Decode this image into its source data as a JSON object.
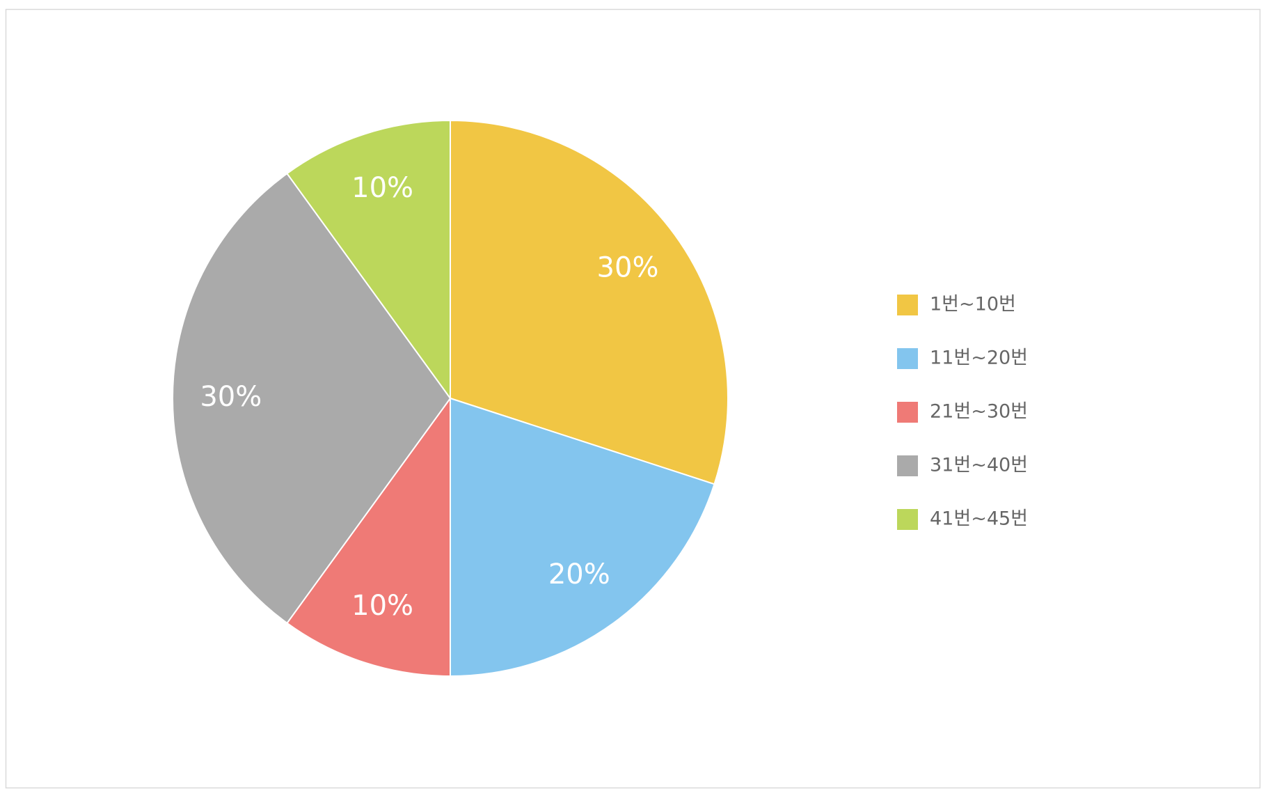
{
  "chart_data": {
    "type": "pie",
    "categories": [
      "1번~10번",
      "11번~20번",
      "21번~30번",
      "31번~40번",
      "41번~45번"
    ],
    "values": [
      30,
      20,
      10,
      30,
      10
    ],
    "value_labels": [
      "30%",
      "20%",
      "10%",
      "30%",
      "10%"
    ],
    "colors": [
      "#f1c644",
      "#83c5ee",
      "#ef7a76",
      "#aaaaaa",
      "#bcd75b"
    ],
    "legend": "right"
  }
}
